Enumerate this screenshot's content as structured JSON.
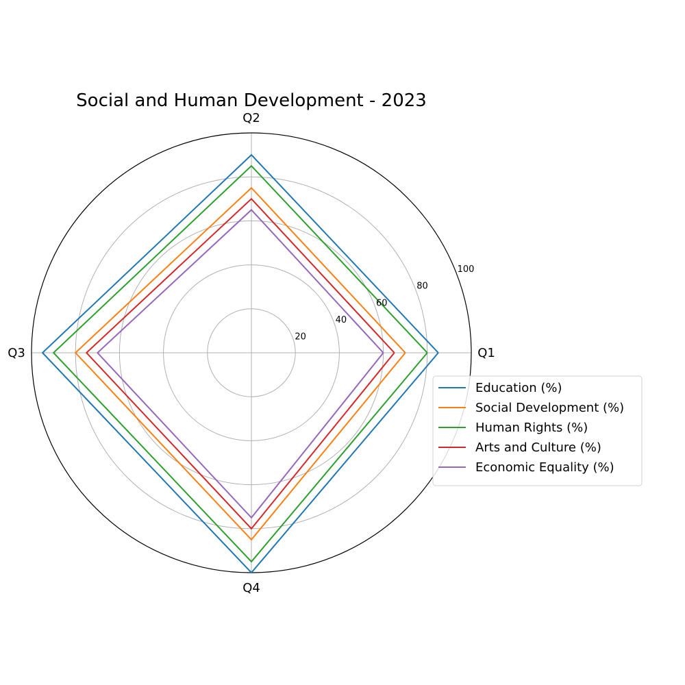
{
  "chart_data": {
    "type": "radar",
    "title": "Social and Human Development - 2023",
    "categories": [
      "Q1",
      "Q2",
      "Q3",
      "Q4"
    ],
    "rlim": [
      0,
      100
    ],
    "rticks": [
      20,
      40,
      60,
      80,
      100
    ],
    "rtick_labels": [
      "20",
      "40",
      "60",
      "80",
      "100"
    ],
    "grid": true,
    "legend_position": "right",
    "series": [
      {
        "name": "Education (%)",
        "values": [
          85,
          90,
          95,
          100
        ],
        "color": "#1f77b4"
      },
      {
        "name": "Social Development (%)",
        "values": [
          70,
          75,
          80,
          85
        ],
        "color": "#ff7f0e"
      },
      {
        "name": "Human Rights (%)",
        "values": [
          80,
          85,
          90,
          95
        ],
        "color": "#2ca02c"
      },
      {
        "name": "Arts and Culture (%)",
        "values": [
          65,
          70,
          75,
          80
        ],
        "color": "#d62728"
      },
      {
        "name": "Economic Equality (%)",
        "values": [
          60,
          65,
          70,
          75
        ],
        "color": "#9467bd"
      }
    ]
  }
}
